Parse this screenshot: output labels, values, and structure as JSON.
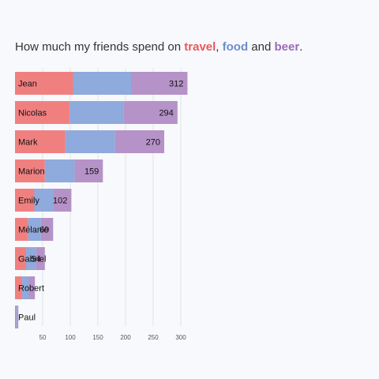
{
  "chart_data": {
    "type": "bar",
    "orientation": "horizontal",
    "stacked": true,
    "title": {
      "prefix": "How much my friends spend on ",
      "travel": "travel",
      "sep1": ", ",
      "food": "food",
      "sep2": " and ",
      "beer": "beer",
      "suffix": "."
    },
    "categories": [
      "Jean",
      "Nicolas",
      "Mark",
      "Marion",
      "Emily",
      "Mélanie",
      "Gabriel",
      "Robert",
      "Paul"
    ],
    "series": [
      {
        "name": "travel",
        "color": "#f08080",
        "values": [
          105,
          99,
          91,
          54,
          35,
          24,
          20,
          13,
          2
        ]
      },
      {
        "name": "food",
        "color": "#8faadc",
        "values": [
          105,
          98,
          90,
          54,
          35,
          23,
          18,
          12,
          3
        ]
      },
      {
        "name": "beer",
        "color": "#b592c8",
        "values": [
          102,
          97,
          89,
          51,
          32,
          22,
          16,
          11,
          1
        ]
      }
    ],
    "totals": [
      312,
      294,
      270,
      159,
      102,
      69,
      54,
      null,
      null
    ],
    "xticks": [
      50,
      100,
      150,
      200,
      250,
      300
    ],
    "xlim": [
      0,
      315
    ],
    "grid": true
  }
}
